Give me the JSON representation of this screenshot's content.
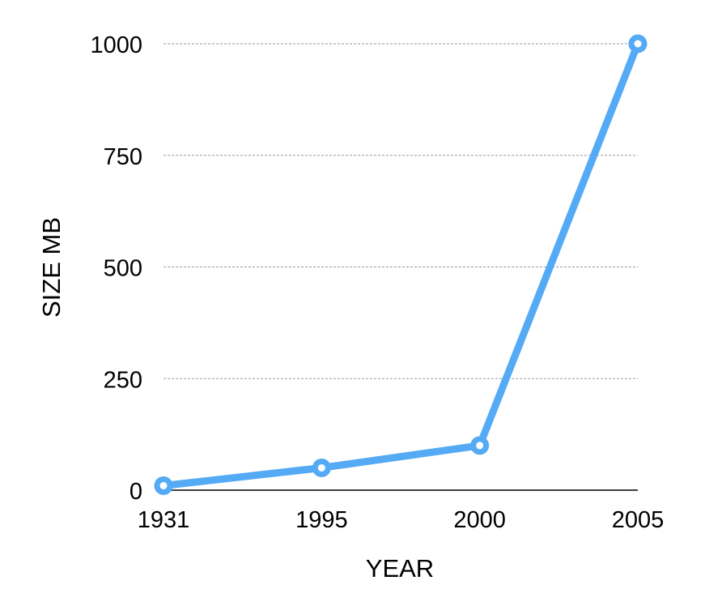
{
  "chart_data": {
    "type": "line",
    "title": "",
    "xlabel": "YEAR",
    "ylabel": "SIZE MB",
    "categories": [
      "1931",
      "1995",
      "2000",
      "2005"
    ],
    "series": [
      {
        "values": [
          10,
          50,
          100,
          1000
        ],
        "color": "#55AAF5"
      }
    ],
    "yticks": [
      0,
      250,
      500,
      750,
      1000
    ],
    "ylim": [
      0,
      1000
    ],
    "grid": true,
    "grid_color": "#999999",
    "axis_color": "#000000",
    "legend": "none"
  }
}
